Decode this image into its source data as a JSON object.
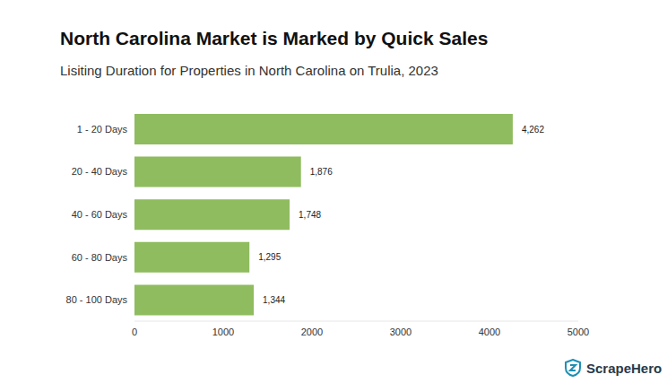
{
  "chart_data": {
    "type": "bar",
    "title": "North Carolina Market is Marked by Quick Sales",
    "subtitle": "Lisiting Duration for Properties in North Carolina on Trulia, 2023",
    "annotation": "ScrapeHero",
    "orientation": "horizontal",
    "categories": [
      "1 - 20 Days",
      "20 - 40 Days",
      "40 - 60 Days",
      "60 - 80 Days",
      "80 - 100 Days"
    ],
    "values": [
      4262,
      1876,
      1748,
      1295,
      1344
    ],
    "value_labels": [
      "4,262",
      "1,876",
      "1,748",
      "1,295",
      "1,344"
    ],
    "color": "#8fbc5f",
    "xlim": [
      0,
      5000
    ],
    "xticks": [
      0,
      1000,
      2000,
      3000,
      4000,
      5000
    ],
    "grid": false,
    "data_labels": true
  }
}
